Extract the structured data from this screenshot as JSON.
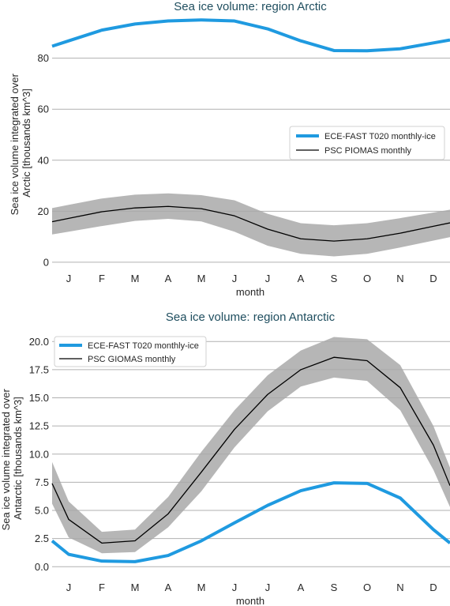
{
  "chart_data": [
    {
      "type": "line",
      "title": "Sea ice volume: region Arctic",
      "xlabel": "month",
      "ylabel_lines": [
        "Sea ice volume integrated over",
        "Arctic [thousands km^3]"
      ],
      "categories": [
        "J",
        "F",
        "M",
        "A",
        "M",
        "J",
        "J",
        "A",
        "S",
        "O",
        "N",
        "D"
      ],
      "ylim": [
        -2.5,
        96
      ],
      "yticks": [
        0,
        20,
        40,
        60,
        80
      ],
      "ytick_labels": [
        "0",
        "20",
        "40",
        "60",
        "80"
      ],
      "grid": "horizontal",
      "legend_position": "right",
      "series": [
        {
          "name": "ECE-FAST T020 monthly-ice",
          "color": "#1f9ae0",
          "style": "thick",
          "values": [
            86.8,
            91.0,
            93.4,
            94.6,
            95.0,
            94.6,
            91.5,
            86.8,
            83.0,
            82.9,
            83.7,
            86.0
          ]
        },
        {
          "name": "PSC PIOMAS monthly",
          "color": "#000000",
          "style": "thin",
          "values": [
            17.2,
            19.8,
            21.3,
            21.9,
            21.0,
            18.2,
            13.0,
            9.2,
            8.3,
            9.2,
            11.4,
            14.1
          ],
          "band_upper": [
            22.5,
            25.0,
            26.5,
            27.0,
            26.3,
            24.3,
            19.0,
            15.3,
            14.5,
            15.3,
            17.3,
            19.5
          ],
          "band_lower": [
            12.0,
            14.2,
            16.2,
            17.0,
            16.0,
            12.0,
            6.5,
            3.3,
            2.3,
            3.3,
            5.8,
            8.5
          ]
        }
      ]
    },
    {
      "type": "line",
      "title": "Sea ice volume: region Antarctic",
      "xlabel": "month",
      "ylabel_lines": [
        "Sea ice volume integrated over",
        "Antarctic [thousands km^3]"
      ],
      "categories": [
        "J",
        "F",
        "M",
        "A",
        "M",
        "J",
        "J",
        "A",
        "S",
        "O",
        "N",
        "D"
      ],
      "ylim": [
        -0.75,
        21.0
      ],
      "yticks": [
        0,
        2.5,
        5,
        7.5,
        10,
        12.5,
        15,
        17.5,
        20
      ],
      "ytick_labels": [
        "0.0",
        "2.5",
        "5.0",
        "7.5",
        "10.0",
        "12.5",
        "15.0",
        "17.5",
        "20.0"
      ],
      "grid": "horizontal",
      "legend_position": "top-left",
      "series": [
        {
          "name": "ECE-FAST T020 monthly-ice",
          "color": "#1f9ae0",
          "style": "thick",
          "values": [
            1.1,
            0.5,
            0.45,
            1.0,
            2.3,
            3.9,
            5.45,
            6.75,
            7.45,
            7.4,
            6.1,
            3.3
          ],
          "edge_values": [
            2.3,
            2.1
          ]
        },
        {
          "name": "PSC GIOMAS monthly",
          "color": "#000000",
          "style": "thin",
          "values": [
            4.2,
            2.1,
            2.3,
            4.7,
            8.4,
            12.2,
            15.3,
            17.5,
            18.6,
            18.3,
            15.9,
            10.8
          ],
          "edge_values": [
            7.4,
            7.2
          ],
          "band_upper": [
            5.8,
            3.1,
            3.3,
            6.2,
            10.2,
            13.9,
            17.0,
            19.2,
            20.4,
            20.2,
            17.9,
            12.5
          ],
          "band_lower": [
            2.6,
            1.2,
            1.3,
            3.5,
            6.7,
            10.6,
            13.8,
            16.0,
            16.8,
            16.5,
            13.9,
            8.6
          ],
          "band_edge_upper": [
            9.3,
            8.8
          ],
          "band_edge_lower": [
            5.6,
            5.3
          ]
        }
      ]
    }
  ]
}
